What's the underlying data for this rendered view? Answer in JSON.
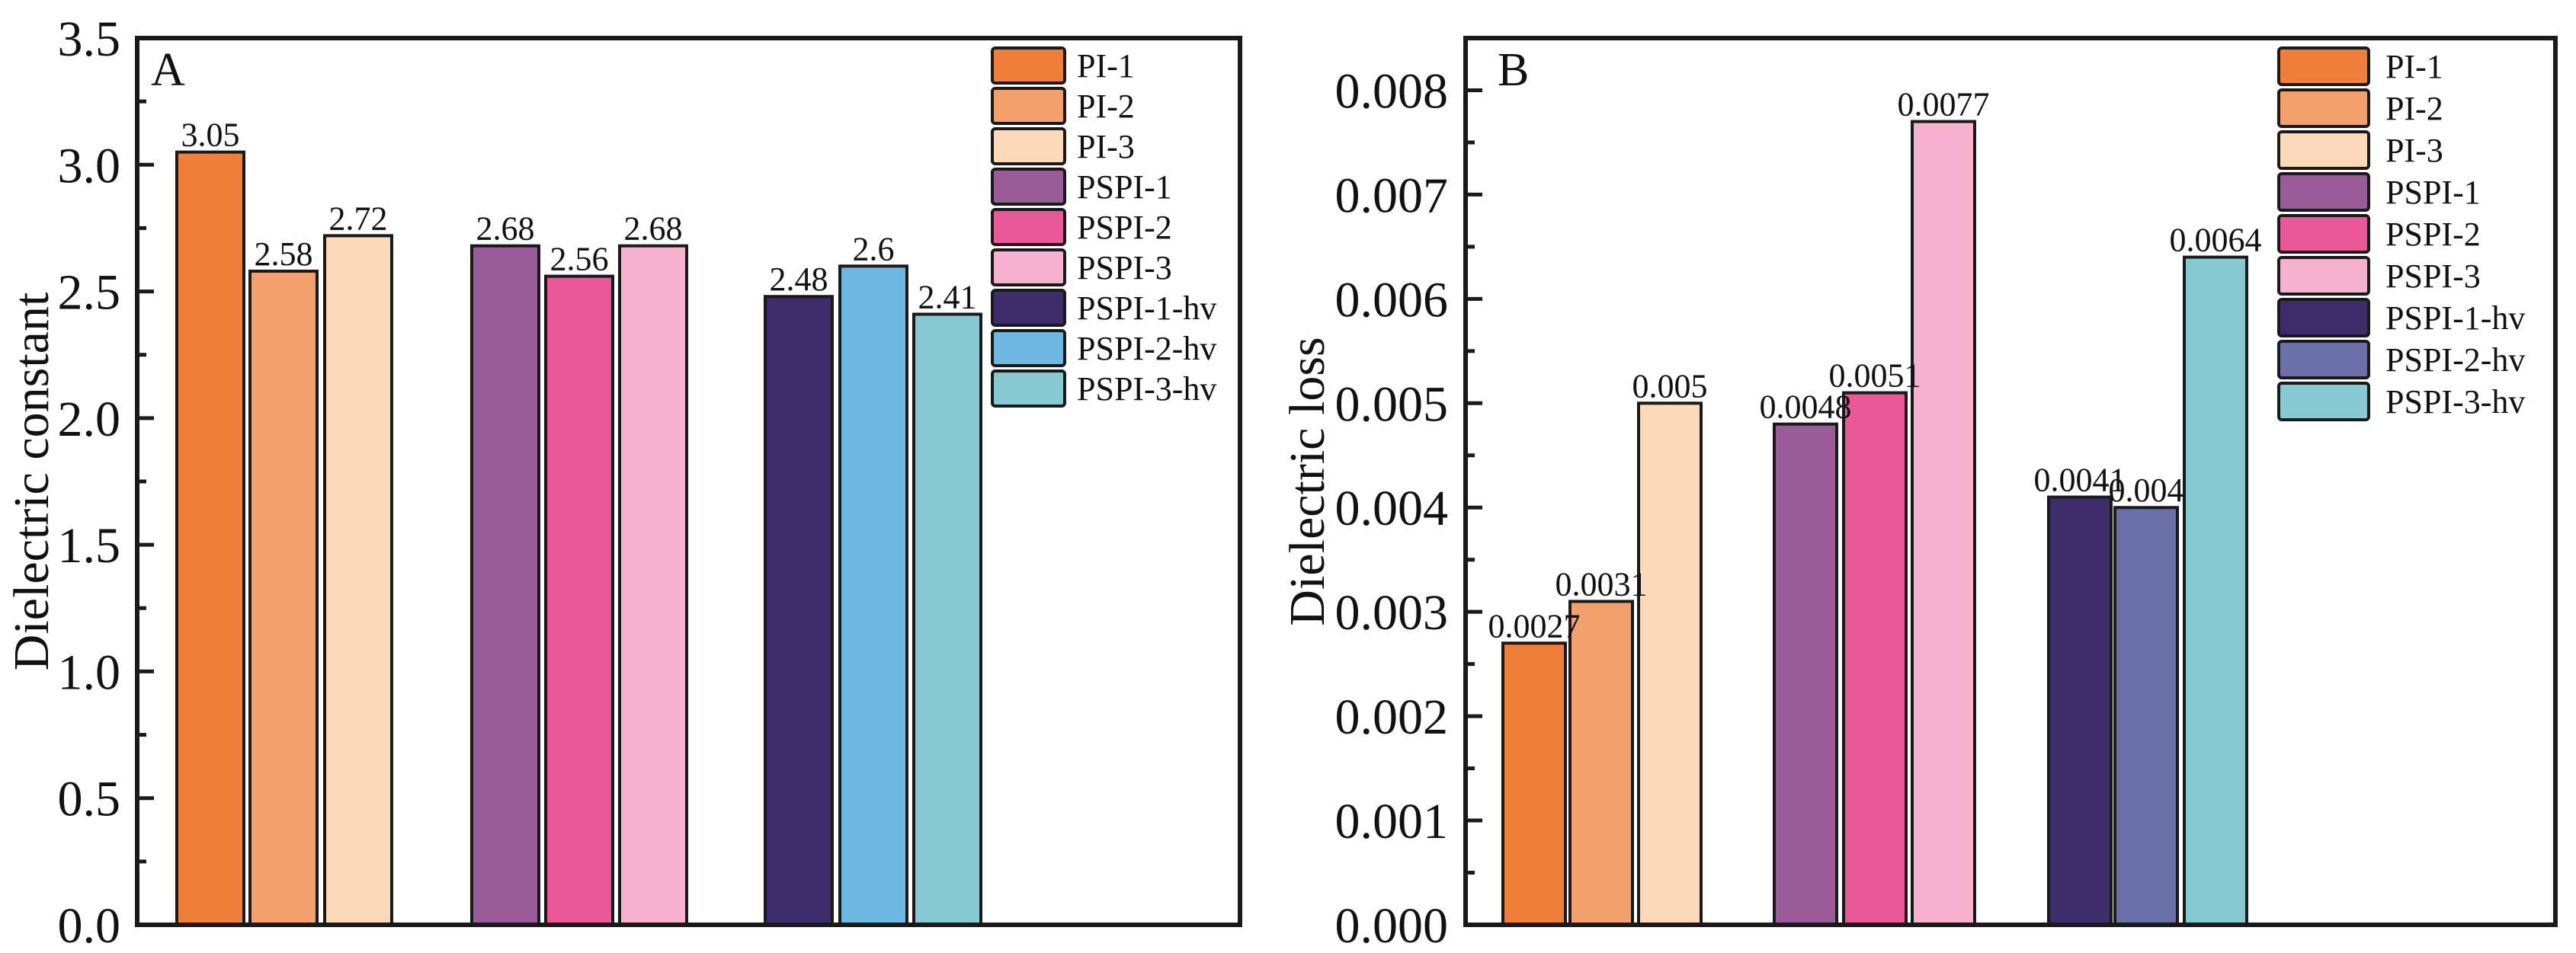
{
  "chart_data": [
    {
      "type": "bar",
      "panel_letter": "A",
      "title": "",
      "xlabel": "",
      "ylabel": "Dielectric constant",
      "ylim": [
        0,
        3.5
      ],
      "yticks": [
        "0.0",
        "0.5",
        "1.0",
        "1.5",
        "2.0",
        "2.5",
        "3.0",
        "3.5"
      ],
      "ytick_values": [
        0,
        0.5,
        1.0,
        1.5,
        2.0,
        2.5,
        3.0,
        3.5
      ],
      "minor_tick_step": 0.25,
      "grid": false,
      "legend_position": "top-right",
      "series": [
        {
          "name": "PI-1",
          "value": 3.05,
          "label": "3.05",
          "color": "#EE7E39"
        },
        {
          "name": "PI-2",
          "value": 2.58,
          "label": "2.58",
          "color": "#F2A16E"
        },
        {
          "name": "PI-3",
          "value": 2.72,
          "label": "2.72",
          "color": "#FDD9BB"
        },
        {
          "name": "PSPI-1",
          "value": 2.68,
          "label": "2.68",
          "color": "#9A5C99"
        },
        {
          "name": "PSPI-2",
          "value": 2.56,
          "label": "2.56",
          "color": "#EA5897"
        },
        {
          "name": "PSPI-3",
          "value": 2.68,
          "label": "2.68",
          "color": "#F6B1CF"
        },
        {
          "name": "PSPI-1-hv",
          "value": 2.48,
          "label": "2.48",
          "color": "#3D2C6A"
        },
        {
          "name": "PSPI-2-hv",
          "value": 2.6,
          "label": "2.6",
          "color": "#6DB7E0"
        },
        {
          "name": "PSPI-3-hv",
          "value": 2.41,
          "label": "2.41",
          "color": "#86C9D1"
        }
      ]
    },
    {
      "type": "bar",
      "panel_letter": "B",
      "title": "",
      "xlabel": "",
      "ylabel": "Dielectric loss",
      "ylim": [
        0,
        0.0085
      ],
      "yticks": [
        "0.000",
        "0.001",
        "0.002",
        "0.003",
        "0.004",
        "0.005",
        "0.006",
        "0.007",
        "0.008"
      ],
      "ytick_values": [
        0,
        0.001,
        0.002,
        0.003,
        0.004,
        0.005,
        0.006,
        0.007,
        0.008
      ],
      "minor_tick_step": 0.0005,
      "grid": false,
      "legend_position": "top-right",
      "series": [
        {
          "name": "PI-1",
          "value": 0.0027,
          "label": "0.0027",
          "color": "#EE7E39"
        },
        {
          "name": "PI-2",
          "value": 0.0031,
          "label": "0.0031",
          "color": "#F2A16E"
        },
        {
          "name": "PI-3",
          "value": 0.005,
          "label": "0.005",
          "color": "#FDD9BB"
        },
        {
          "name": "PSPI-1",
          "value": 0.0048,
          "label": "0.0048",
          "color": "#9A5C99"
        },
        {
          "name": "PSPI-2",
          "value": 0.0051,
          "label": "0.0051",
          "color": "#EA5897"
        },
        {
          "name": "PSPI-3",
          "value": 0.0077,
          "label": "0.0077",
          "color": "#F6B1CF"
        },
        {
          "name": "PSPI-1-hv",
          "value": 0.0041,
          "label": "0.0041",
          "color": "#3D2C6A"
        },
        {
          "name": "PSPI-2-hv",
          "value": 0.004,
          "label": "0.004",
          "color": "#6A6FA8"
        },
        {
          "name": "PSPI-3-hv",
          "value": 0.0064,
          "label": "0.0064",
          "color": "#86C9D1"
        }
      ]
    }
  ]
}
